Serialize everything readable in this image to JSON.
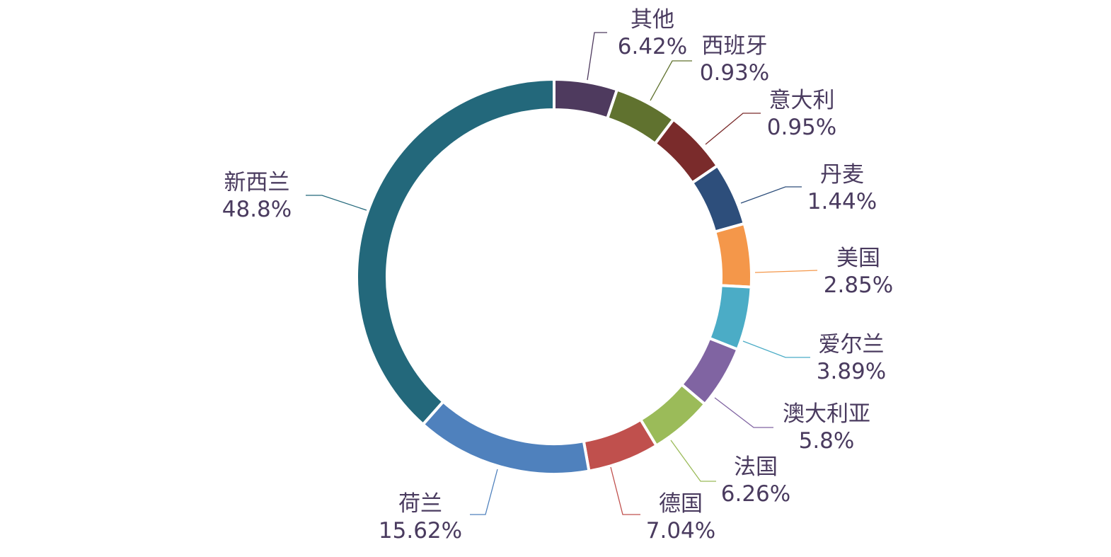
{
  "chart_data": {
    "type": "pie",
    "variant": "donut",
    "legend": "none",
    "slices": [
      {
        "name": "其他",
        "percent_label": "6.42%",
        "color": "#4e3a5e"
      },
      {
        "name": "西班牙",
        "percent_label": "0.93%",
        "color": "#60722f"
      },
      {
        "name": "意大利",
        "percent_label": "0.95%",
        "color": "#7a2b2b"
      },
      {
        "name": "丹麦",
        "percent_label": "1.44%",
        "color": "#2d4e7b"
      },
      {
        "name": "美国",
        "percent_label": "2.85%",
        "color": "#f4974a"
      },
      {
        "name": "爱尔兰",
        "percent_label": "3.89%",
        "color": "#4bacc6"
      },
      {
        "name": "澳大利亚",
        "percent_label": "5.8%",
        "color": "#8064a2"
      },
      {
        "name": "法国",
        "percent_label": "6.26%",
        "color": "#9bbb59"
      },
      {
        "name": "德国",
        "percent_label": "7.04%",
        "color": "#c0504d"
      },
      {
        "name": "荷兰",
        "percent_label": "15.62%",
        "color": "#4f81bd"
      },
      {
        "name": "新西兰",
        "percent_label": "48.8%",
        "color": "#23687b"
      }
    ]
  }
}
